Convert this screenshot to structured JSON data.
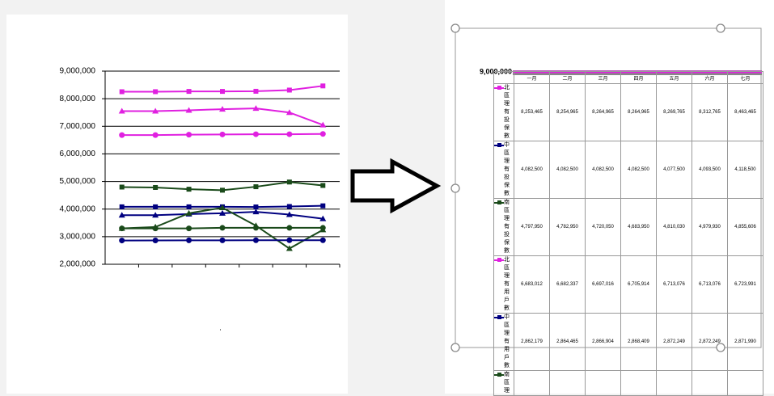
{
  "chart_data": {
    "type": "line",
    "categories": [
      null,
      null,
      null,
      null,
      null,
      null,
      null
    ],
    "ylim": [
      2000000,
      9000000
    ],
    "yticks": [
      {
        "value": 2000000,
        "label": "2,000,000"
      },
      {
        "value": 3000000,
        "label": "3,000,000"
      },
      {
        "value": 4000000,
        "label": "4,000,000"
      },
      {
        "value": 5000000,
        "label": "5,000,000"
      },
      {
        "value": 6000000,
        "label": "6,000,000"
      },
      {
        "value": 7000000,
        "label": "7,000,000"
      },
      {
        "value": 8000000,
        "label": "8,000,000"
      },
      {
        "value": 9000000,
        "label": "9,000,000"
      }
    ],
    "grid": true,
    "series": [
      {
        "color": "#e020e0",
        "marker": "square",
        "values": [
          8253465,
          8254965,
          8264965,
          8264965,
          8269765,
          8312765,
          8463465
        ]
      },
      {
        "color": "#e020e0",
        "marker": "triangle",
        "values": [
          7550000,
          7550000,
          7580000,
          7620000,
          7650000,
          7500000,
          7050000
        ]
      },
      {
        "color": "#e020e0",
        "marker": "circle",
        "values": [
          6683012,
          6682337,
          6697016,
          6705914,
          6713076,
          6713076,
          6723991
        ]
      },
      {
        "color": "#1a4a1a",
        "marker": "square",
        "values": [
          4797950,
          4782950,
          4720050,
          4683950,
          4810030,
          4979930,
          4855606
        ]
      },
      {
        "color": "#000080",
        "marker": "square",
        "values": [
          4082500,
          4082500,
          4082500,
          4082500,
          4077500,
          4093500,
          4118500
        ]
      },
      {
        "color": "#000080",
        "marker": "triangle",
        "values": [
          3780000,
          3780000,
          3820000,
          3850000,
          3900000,
          3800000,
          3650000
        ]
      },
      {
        "color": "#1a4a1a",
        "marker": "triangle",
        "values": [
          3300000,
          3350000,
          3850000,
          4050000,
          3400000,
          2570000,
          3250000
        ]
      },
      {
        "color": "#1a4a1a",
        "marker": "circle",
        "values": [
          3300000,
          3300000,
          3300000,
          3320000,
          3320000,
          3320000,
          3320000
        ]
      },
      {
        "color": "#000080",
        "marker": "circle",
        "values": [
          2862179,
          2864465,
          2866904,
          2868409,
          2872249,
          2872249,
          2871990
        ]
      }
    ]
  },
  "right_panel": {
    "overlap_label": "9,000,000"
  },
  "table": {
    "header": [
      "一月",
      "二月",
      "三月",
      "四月",
      "五月",
      "六月",
      "七月"
    ],
    "rows": [
      {
        "label": "北區理有投保數",
        "color": "#e020e0",
        "cells": [
          "8,253,465",
          "8,254,965",
          "8,264,965",
          "8,264,965",
          "8,269,765",
          "8,312,765",
          "8,463,465"
        ]
      },
      {
        "label": "中區理有投保數",
        "color": "#000080",
        "cells": [
          "4,082,500",
          "4,082,500",
          "4,082,500",
          "4,082,500",
          "4,077,500",
          "4,093,500",
          "4,118,500"
        ]
      },
      {
        "label": "南區理有投保數",
        "color": "#1a4a1a",
        "cells": [
          "4,797,950",
          "4,782,950",
          "4,720,050",
          "4,683,950",
          "4,810,030",
          "4,979,930",
          "4,855,606"
        ]
      },
      {
        "label": "北區理有用戶數",
        "color": "#e020e0",
        "cells": [
          "6,683,012",
          "6,682,337",
          "6,697,016",
          "6,705,914",
          "6,713,076",
          "6,713,076",
          "6,723,991"
        ]
      },
      {
        "label": "中區理有用戶數",
        "color": "#000080",
        "cells": [
          "2,862,179",
          "2,864,465",
          "2,866,904",
          "2,868,409",
          "2,872,249",
          "2,872,249",
          "2,871,990"
        ]
      },
      {
        "label": "南區理",
        "color": "#1a4a1a",
        "cells": []
      }
    ]
  }
}
